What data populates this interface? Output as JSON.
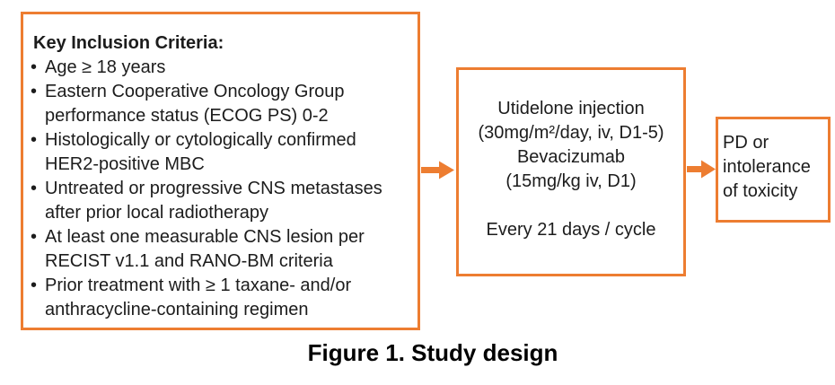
{
  "colors": {
    "accent": "#ED7D31",
    "text": "#1C1C1C"
  },
  "diagram": {
    "inclusion_box": {
      "heading": "Key Inclusion Criteria:",
      "bullet_glyph": "•",
      "items": [
        "Age ≥ 18 years",
        "Eastern Cooperative Oncology Group\nperformance status (ECOG PS) 0-2",
        "Histologically or cytologically confirmed\nHER2-positive MBC",
        "Untreated or progressive CNS metastases\nafter prior local radiotherapy",
        "At least one measurable CNS lesion per\nRECIST v1.1 and RANO-BM criteria",
        "Prior treatment with ≥ 1 taxane- and/or\nanthracycline-containing regimen"
      ]
    },
    "treatment_box": {
      "text": "Utidelone injection\n(30mg/m²/day, iv, D1-5)\nBevacizumab\n(15mg/kg iv, D1)\n\nEvery 21 days / cycle"
    },
    "outcome_box": {
      "text": "PD or\nintolerance\nof toxicity"
    },
    "caption": "Figure 1. Study design"
  }
}
